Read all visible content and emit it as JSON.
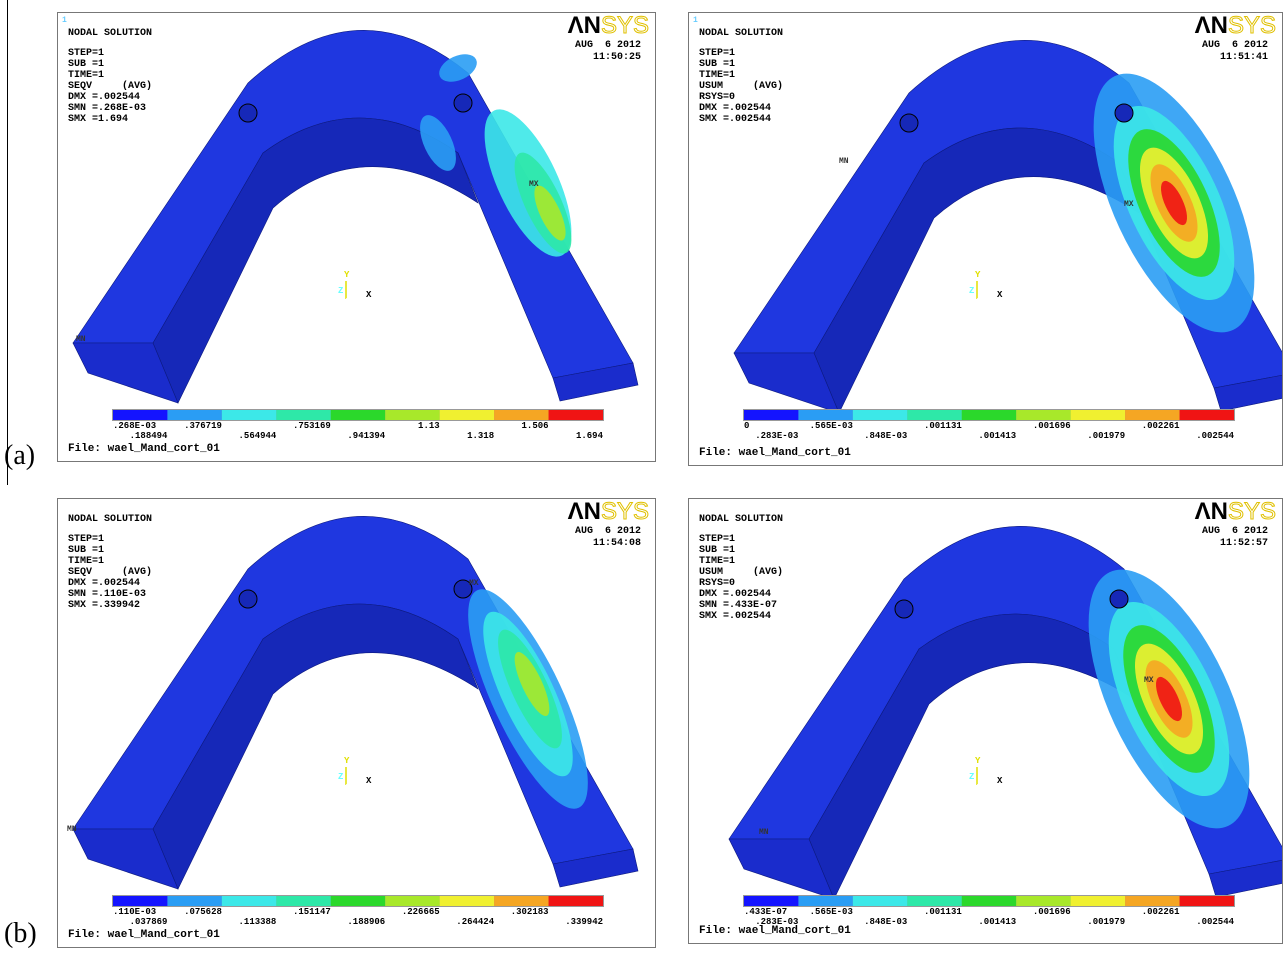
{
  "labels": [
    "(a)",
    "(b)"
  ],
  "panels": [
    {
      "window": "1",
      "title": "NODAL SOLUTION",
      "info": [
        "STEP=1",
        "SUB =1",
        "TIME=1",
        "SEQV     (AVG)",
        "DMX =.002544",
        "SMN =.268E-03",
        "SMX =1.694"
      ],
      "date": "AUG  6 2012",
      "time": "11:50:25",
      "logo": [
        "ΛN",
        "SYS"
      ],
      "markers": [
        "MN",
        "MX"
      ],
      "triad": [
        "Y",
        "Z",
        "X"
      ],
      "legend": [
        ".268E-03",
        ".188494",
        ".376719",
        ".564944",
        ".753169",
        ".941394",
        "1.13",
        "1.318",
        "1.506",
        "1.694"
      ],
      "file": "File: wael_Mand_cort_01"
    },
    {
      "window": "1",
      "title": "NODAL SOLUTION",
      "info": [
        "STEP=1",
        "SUB =1",
        "TIME=1",
        "USUM     (AVG)",
        "RSYS=0",
        "DMX =.002544",
        "SMX =.002544"
      ],
      "date": "AUG  6 2012",
      "time": "11:51:41",
      "logo": [
        "ΛN",
        "SYS"
      ],
      "markers": [
        "MN",
        "MX"
      ],
      "triad": [
        "Y",
        "Z",
        "X"
      ],
      "legend": [
        "0",
        ".283E-03",
        ".565E-03",
        ".848E-03",
        ".001131",
        ".001413",
        ".001696",
        ".001979",
        ".002261",
        ".002544"
      ],
      "file": "File: wael_Mand_cort_01"
    },
    {
      "title": "NODAL SOLUTION",
      "info": [
        "STEP=1",
        "SUB =1",
        "TIME=1",
        "SEQV     (AVG)",
        "DMX =.002544",
        "SMN =.110E-03",
        "SMX =.339942"
      ],
      "date": "AUG  6 2012",
      "time": "11:54:08",
      "logo": [
        "ΛN",
        "SYS"
      ],
      "markers": [
        "MN",
        "MX"
      ],
      "triad": [
        "Y",
        "Z",
        "X"
      ],
      "legend": [
        ".110E-03",
        ".037869",
        ".075628",
        ".113388",
        ".151147",
        ".188906",
        ".226665",
        ".264424",
        ".302183",
        ".339942"
      ],
      "file": "File: wael_Mand_cort_01"
    },
    {
      "title": "NODAL SOLUTION",
      "info": [
        "STEP=1",
        "SUB =1",
        "TIME=1",
        "USUM     (AVG)",
        "RSYS=0",
        "DMX =.002544",
        "SMN =.433E-07",
        "SMX =.002544"
      ],
      "date": "AUG  6 2012",
      "time": "11:52:57",
      "logo": [
        "ΛN",
        "SYS"
      ],
      "markers": [
        "MN",
        "MX"
      ],
      "triad": [
        "Y",
        "Z",
        "X"
      ],
      "legend": [
        ".433E-07",
        ".283E-03",
        ".565E-03",
        ".848E-03",
        ".001131",
        ".001413",
        ".001696",
        ".001979",
        ".002261",
        ".002544"
      ],
      "file": "File: wael_Mand_cort_01"
    }
  ]
}
